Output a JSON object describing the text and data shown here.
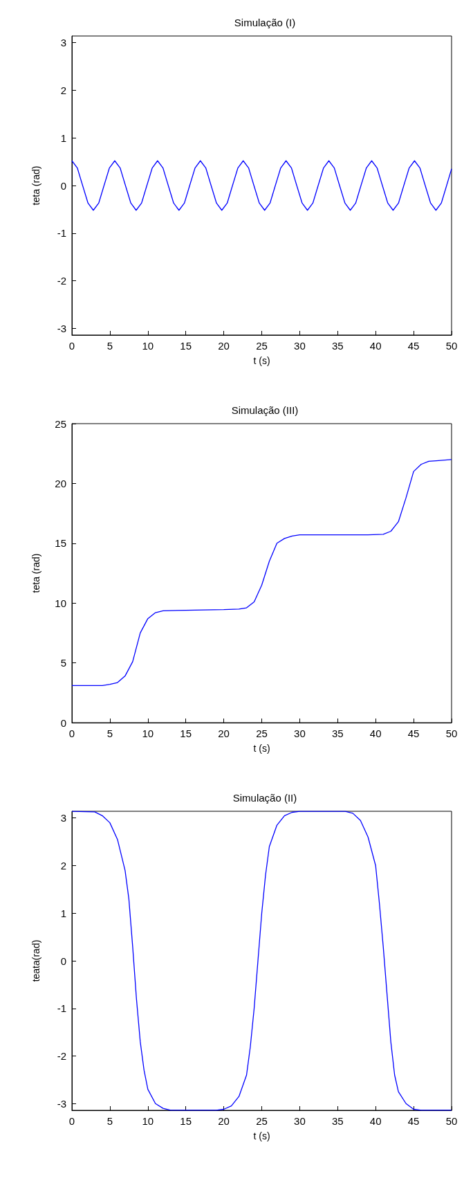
{
  "chart_data": [
    {
      "type": "line",
      "title": "Simulação (I)",
      "xlabel": "t (s)",
      "ylabel": "teta (rad)",
      "color": "#0000ff",
      "grid": false,
      "marker": "none",
      "line_style": "solid",
      "xlim": [
        0,
        50
      ],
      "xticks": [
        0,
        5,
        10,
        15,
        20,
        25,
        30,
        35,
        40,
        45,
        50
      ],
      "ylim": [
        -3.1416,
        3.1416
      ],
      "yticks": [
        -3,
        -2,
        -1,
        0,
        1,
        2,
        3
      ],
      "x": [
        0,
        0.71,
        1.41,
        2.12,
        2.82,
        3.53,
        4.23,
        4.94,
        5.64,
        6.35,
        7.05,
        7.76,
        8.46,
        9.17,
        9.87,
        10.58,
        11.28,
        11.99,
        12.69,
        13.4,
        14.1,
        14.81,
        15.51,
        16.22,
        16.92,
        17.63,
        18.33,
        19.04,
        19.74,
        20.45,
        21.15,
        21.86,
        22.56,
        23.27,
        23.97,
        24.68,
        25.38,
        26.09,
        26.79,
        27.5,
        28.2,
        28.91,
        29.61,
        30.32,
        31.02,
        31.73,
        32.43,
        33.14,
        33.84,
        34.55,
        35.25,
        35.96,
        36.66,
        37.37,
        38.07,
        38.78,
        39.48,
        40.19,
        40.89,
        41.6,
        42.3,
        43.01,
        43.71,
        44.42,
        45.12,
        45.83,
        46.53,
        47.24,
        47.94,
        48.65,
        49.35,
        50
      ],
      "values": [
        0.52,
        0.37,
        0,
        -0.37,
        -0.52,
        -0.37,
        0,
        0.37,
        0.52,
        0.37,
        0,
        -0.37,
        -0.52,
        -0.37,
        0,
        0.37,
        0.52,
        0.37,
        0,
        -0.37,
        -0.52,
        -0.37,
        0,
        0.37,
        0.52,
        0.37,
        0,
        -0.37,
        -0.52,
        -0.37,
        0,
        0.37,
        0.52,
        0.37,
        0,
        -0.37,
        -0.52,
        -0.37,
        0,
        0.37,
        0.52,
        0.37,
        0,
        -0.37,
        -0.52,
        -0.37,
        0,
        0.37,
        0.52,
        0.37,
        0,
        -0.37,
        -0.52,
        -0.37,
        0,
        0.37,
        0.52,
        0.37,
        0,
        -0.37,
        -0.52,
        -0.37,
        0,
        0.37,
        0.52,
        0.37,
        0,
        -0.37,
        -0.52,
        -0.37,
        0,
        0.35
      ]
    },
    {
      "type": "line",
      "title": "Simulação (III)",
      "xlabel": "t (s)",
      "ylabel": "teta (rad)",
      "color": "#0000ff",
      "grid": false,
      "marker": "none",
      "line_style": "solid",
      "xlim": [
        0,
        50
      ],
      "xticks": [
        0,
        5,
        10,
        15,
        20,
        25,
        30,
        35,
        40,
        45,
        50
      ],
      "ylim": [
        0,
        25
      ],
      "yticks": [
        0,
        5,
        10,
        15,
        20,
        25
      ],
      "x": [
        0,
        4,
        5,
        6,
        7,
        8,
        9,
        10,
        11,
        12,
        15,
        20,
        22,
        23,
        24,
        25,
        26,
        27,
        28,
        29,
        30,
        35,
        39,
        41,
        42,
        43,
        44,
        45,
        46,
        47,
        48,
        50
      ],
      "values": [
        3.1,
        3.1,
        3.2,
        3.35,
        3.9,
        5.1,
        7.5,
        8.7,
        9.2,
        9.35,
        9.4,
        9.45,
        9.5,
        9.6,
        10.1,
        11.5,
        13.5,
        15,
        15.4,
        15.6,
        15.7,
        15.7,
        15.7,
        15.75,
        16,
        16.8,
        18.8,
        21,
        21.6,
        21.85,
        21.9,
        22
      ]
    },
    {
      "type": "line",
      "title": "Simulação (II)",
      "xlabel": "t (s)",
      "ylabel": "teata(rad)",
      "color": "#0000ff",
      "grid": false,
      "marker": "none",
      "line_style": "solid",
      "xlim": [
        0,
        50
      ],
      "xticks": [
        0,
        5,
        10,
        15,
        20,
        25,
        30,
        35,
        40,
        45,
        50
      ],
      "ylim": [
        -3.1416,
        3.1416
      ],
      "yticks": [
        -3,
        -2,
        -1,
        0,
        1,
        2,
        3
      ],
      "x": [
        0,
        3,
        4,
        5,
        6,
        7,
        7.5,
        8,
        8.5,
        9,
        9.5,
        10,
        11,
        12,
        13,
        19,
        20,
        21,
        22,
        23,
        23.5,
        24,
        24.5,
        25,
        25.5,
        26,
        27,
        28,
        29,
        30,
        36,
        37,
        38,
        39,
        40,
        40.5,
        41,
        41.5,
        42,
        42.5,
        43,
        44,
        45,
        46,
        50
      ],
      "values": [
        3.14,
        3.13,
        3.05,
        2.9,
        2.55,
        1.9,
        1.3,
        0.3,
        -0.8,
        -1.7,
        -2.3,
        -2.7,
        -3,
        -3.1,
        -3.14,
        -3.14,
        -3.12,
        -3.05,
        -2.85,
        -2.4,
        -1.8,
        -1,
        0,
        1,
        1.8,
        2.4,
        2.85,
        3.05,
        3.12,
        3.14,
        3.14,
        3.1,
        2.95,
        2.6,
        2,
        1.2,
        0.3,
        -0.7,
        -1.7,
        -2.4,
        -2.75,
        -3,
        -3.12,
        -3.14,
        -3.14
      ]
    }
  ]
}
